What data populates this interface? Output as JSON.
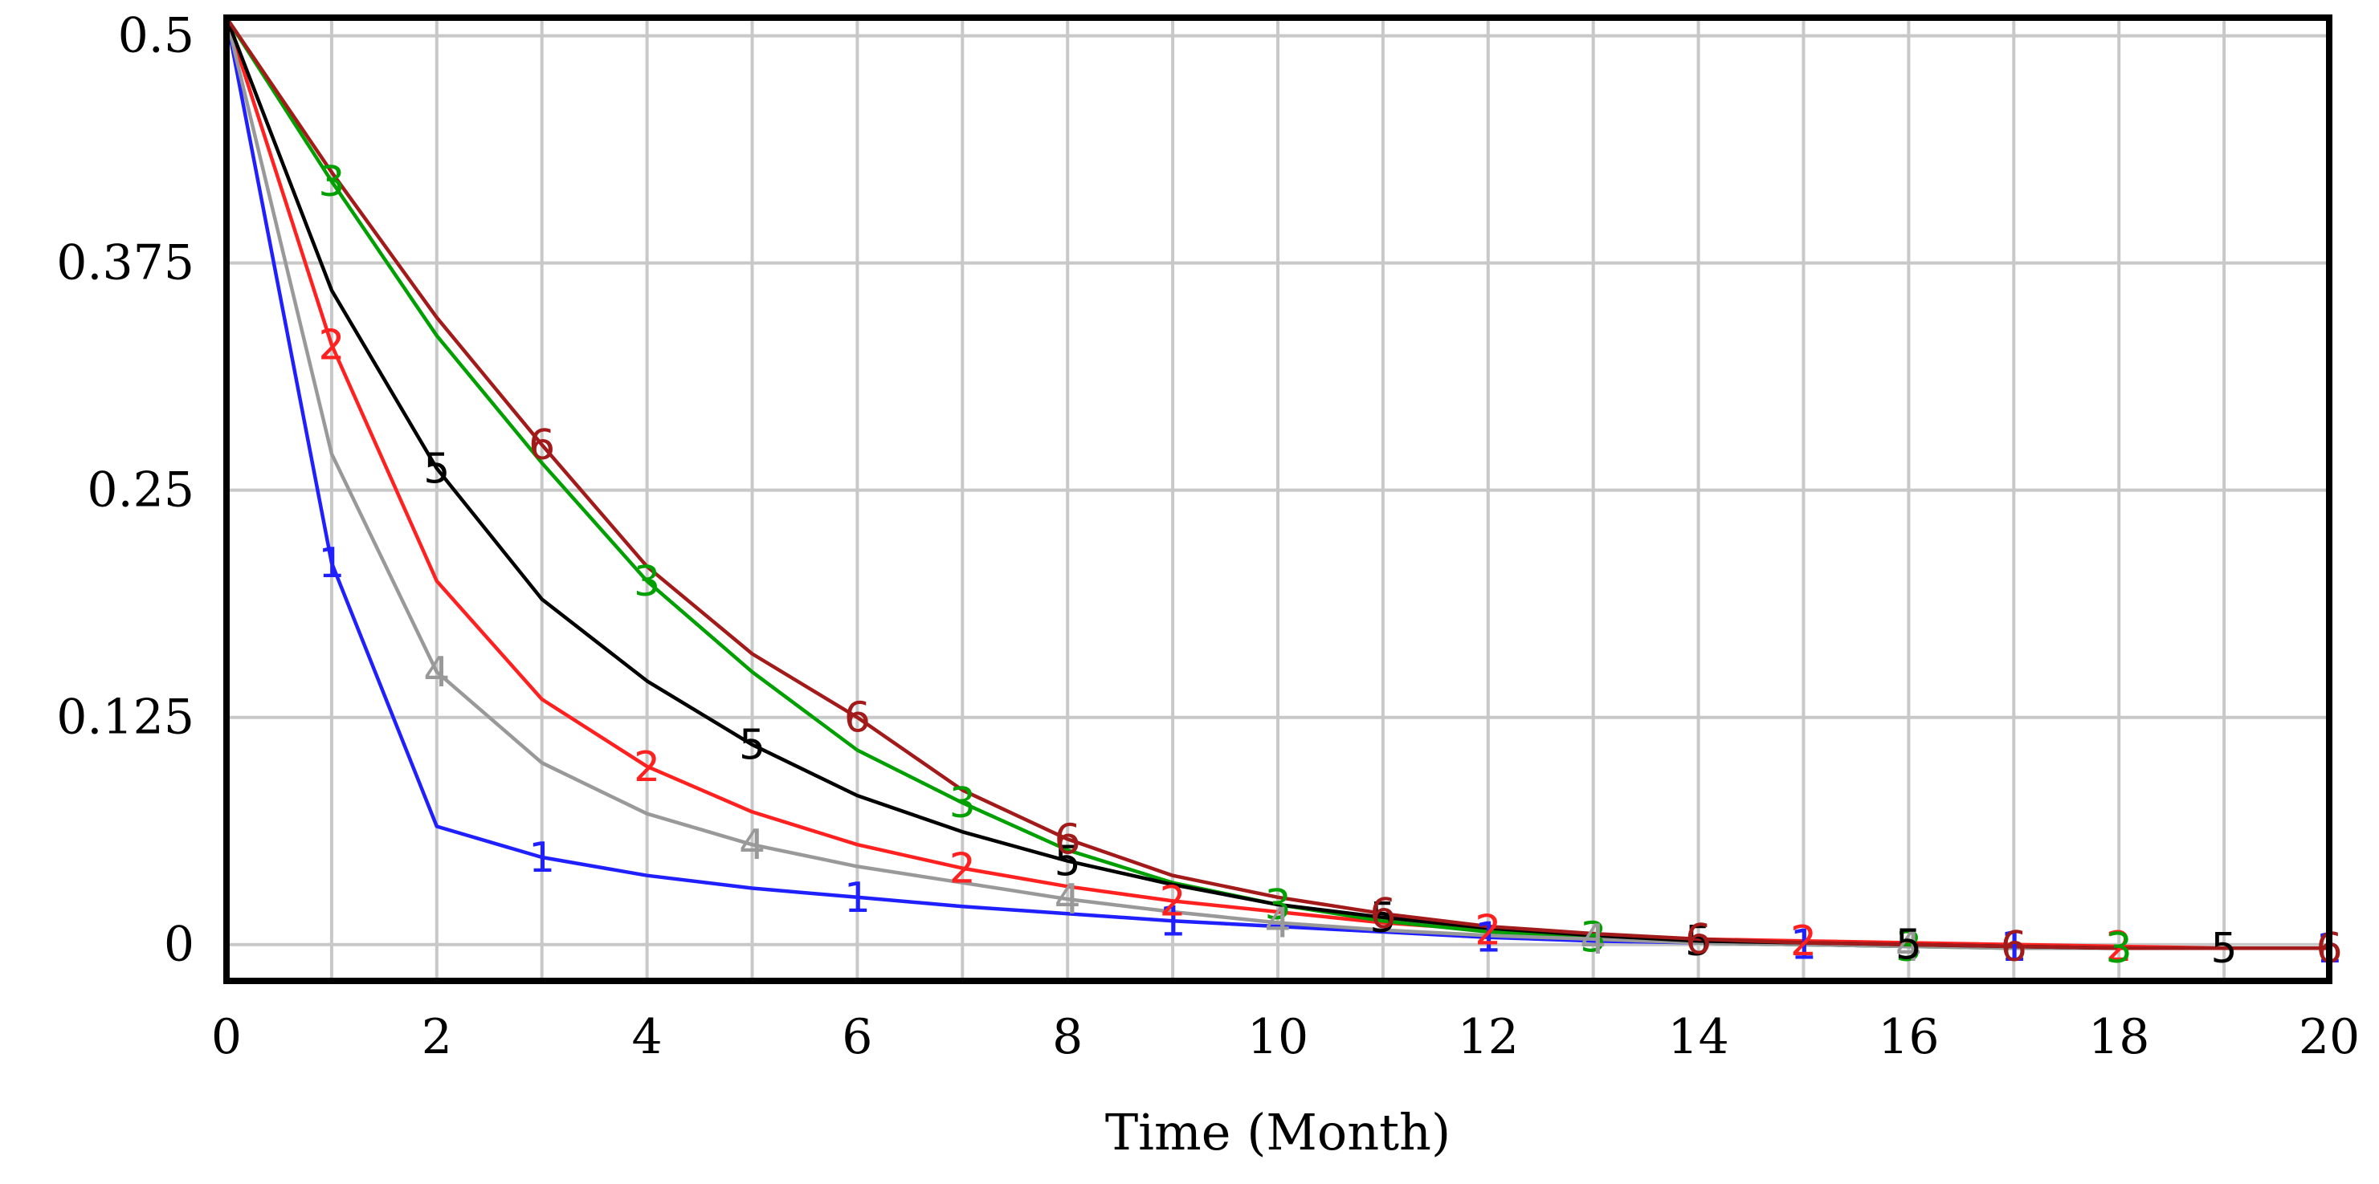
{
  "chart_data": {
    "type": "line",
    "title": "",
    "xlabel": "Time (Month)",
    "ylabel": "",
    "xlim": [
      0,
      20
    ],
    "ylim": [
      -0.02,
      0.51
    ],
    "x_ticks": [
      "0",
      "2",
      "4",
      "6",
      "8",
      "10",
      "12",
      "14",
      "16",
      "18",
      "20"
    ],
    "y_ticks": [
      {
        "value": 0.5,
        "label": "0.5"
      },
      {
        "value": 0.375,
        "label": "0.375"
      },
      {
        "value": 0.25,
        "label": "0.25"
      },
      {
        "value": 0.125,
        "label": "0.125"
      },
      {
        "value": 0,
        "label": "0"
      }
    ],
    "grid": true,
    "legend": "none",
    "x": [
      0,
      1,
      2,
      3,
      4,
      5,
      6,
      7,
      8,
      9,
      10,
      11,
      12,
      13,
      14,
      15,
      16,
      17,
      18,
      19,
      20
    ],
    "series": [
      {
        "marker_label": "1",
        "color": "#1f1fff",
        "values": [
          0.51,
          0.21,
          0.065,
          0.048,
          0.038,
          0.031,
          0.026,
          0.021,
          0.017,
          0.013,
          0.01,
          0.007,
          0.004,
          0.002,
          0.001,
          0.0,
          -0.001,
          -0.001,
          -0.002,
          -0.002,
          -0.002
        ],
        "markers_at": [
          1,
          3,
          6,
          9,
          12,
          15,
          17,
          20
        ]
      },
      {
        "marker_label": "2",
        "color": "#ff2020",
        "values": [
          0.51,
          0.33,
          0.2,
          0.135,
          0.098,
          0.073,
          0.055,
          0.042,
          0.032,
          0.024,
          0.018,
          0.012,
          0.008,
          0.005,
          0.003,
          0.002,
          0.001,
          0.0,
          -0.001,
          -0.002,
          -0.002
        ],
        "markers_at": [
          1,
          4,
          7,
          9,
          12,
          15,
          18
        ]
      },
      {
        "marker_label": "3",
        "color": "#00a000",
        "values": [
          0.51,
          0.42,
          0.335,
          0.265,
          0.2,
          0.15,
          0.107,
          0.078,
          0.052,
          0.034,
          0.022,
          0.013,
          0.007,
          0.004,
          0.001,
          0.0,
          -0.001,
          -0.002,
          -0.002,
          -0.002,
          -0.002
        ],
        "markers_at": [
          1,
          4,
          7,
          10,
          13,
          16,
          18
        ]
      },
      {
        "marker_label": "4",
        "color": "#999999",
        "values": [
          0.51,
          0.27,
          0.15,
          0.1,
          0.072,
          0.055,
          0.043,
          0.034,
          0.025,
          0.018,
          0.012,
          0.008,
          0.005,
          0.003,
          0.001,
          0.0,
          -0.001,
          -0.002,
          -0.002,
          -0.002,
          -0.002
        ],
        "markers_at": [
          2,
          5,
          8,
          10,
          13,
          16
        ]
      },
      {
        "marker_label": "5",
        "color": "#000000",
        "values": [
          0.51,
          0.36,
          0.262,
          0.19,
          0.145,
          0.11,
          0.082,
          0.062,
          0.046,
          0.033,
          0.022,
          0.015,
          0.009,
          0.005,
          0.002,
          0.001,
          0.0,
          -0.001,
          -0.002,
          -0.002,
          -0.002
        ],
        "markers_at": [
          2,
          5,
          8,
          11,
          14,
          16,
          19
        ]
      },
      {
        "marker_label": "6",
        "color": "#a31a1a",
        "values": [
          0.51,
          0.425,
          0.345,
          0.275,
          0.208,
          0.16,
          0.125,
          0.085,
          0.058,
          0.038,
          0.026,
          0.017,
          0.01,
          0.006,
          0.003,
          0.001,
          0.0,
          -0.001,
          -0.002,
          -0.002,
          -0.002
        ],
        "markers_at": [
          3,
          6,
          8,
          11,
          14,
          17,
          20
        ]
      }
    ]
  }
}
